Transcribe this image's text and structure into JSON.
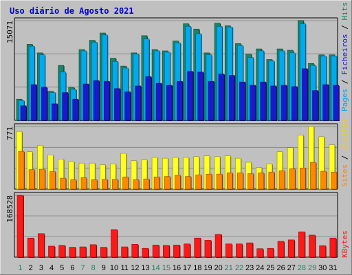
{
  "title": "Uso diário de Agosto 2021",
  "colors": {
    "background": "#c0c0c0",
    "title": "#0000cc",
    "hits": "#1b8466",
    "files": "#00aaee",
    "pages": "#1a1acc",
    "visits": "#ffff20",
    "sites": "#ff8800",
    "kbytes": "#ff1818",
    "weekend": "#1b8466",
    "weekday": "#000000",
    "separator": "#000000",
    "grid": "#808080"
  },
  "chart_data": [
    {
      "type": "bar",
      "name": "hits-files-pages",
      "ymax_label": "15071",
      "ylim": [
        0,
        15071
      ],
      "categories": [
        "1",
        "2",
        "3",
        "4",
        "5",
        "6",
        "7",
        "8",
        "9",
        "10",
        "11",
        "12",
        "13",
        "14",
        "15",
        "16",
        "17",
        "18",
        "19",
        "20",
        "21",
        "22",
        "23",
        "24",
        "25",
        "26",
        "27",
        "28",
        "29",
        "30",
        "31"
      ],
      "series": [
        {
          "name": "Hits",
          "values": [
            3200,
            11500,
            10200,
            4400,
            8300,
            5000,
            10700,
            12100,
            13200,
            9400,
            8200,
            10200,
            12800,
            10700,
            10500,
            12000,
            14600,
            13800,
            10200,
            14700,
            14300,
            11600,
            10000,
            10800,
            9200,
            10800,
            10600,
            15100,
            8600,
            9900,
            9900
          ]
        },
        {
          "name": "Ficheiros",
          "values": [
            3000,
            11200,
            9900,
            4200,
            7300,
            4700,
            10500,
            11800,
            12900,
            8900,
            7900,
            10000,
            12300,
            10500,
            10300,
            11700,
            14200,
            13100,
            9900,
            14200,
            14100,
            11300,
            9500,
            10500,
            9000,
            10500,
            10200,
            14600,
            8300,
            9700,
            9700
          ]
        },
        {
          "name": "Pages",
          "values": [
            2200,
            5400,
            5000,
            2500,
            4200,
            3200,
            5500,
            6000,
            5900,
            4800,
            4300,
            5200,
            6600,
            5600,
            5300,
            5900,
            7400,
            7300,
            5900,
            7000,
            6800,
            5800,
            5300,
            5800,
            5200,
            5300,
            5100,
            7800,
            4500,
            5400,
            5300
          ]
        }
      ]
    },
    {
      "type": "bar",
      "name": "visits-sites",
      "ymax_label": "771",
      "ylim": [
        0,
        771
      ],
      "categories": [
        "1",
        "2",
        "3",
        "4",
        "5",
        "6",
        "7",
        "8",
        "9",
        "10",
        "11",
        "12",
        "13",
        "14",
        "15",
        "16",
        "17",
        "18",
        "19",
        "20",
        "21",
        "22",
        "23",
        "24",
        "25",
        "26",
        "27",
        "28",
        "29",
        "30",
        "31"
      ],
      "series": [
        {
          "name": "Visitas",
          "values": [
            710,
            460,
            540,
            420,
            370,
            340,
            320,
            320,
            300,
            310,
            440,
            350,
            360,
            390,
            380,
            390,
            390,
            400,
            410,
            400,
            410,
            380,
            330,
            265,
            310,
            460,
            510,
            665,
            771,
            645,
            545
          ]
        },
        {
          "name": "Sites",
          "values": [
            465,
            240,
            245,
            215,
            135,
            115,
            140,
            115,
            120,
            120,
            150,
            115,
            125,
            150,
            155,
            170,
            155,
            175,
            185,
            185,
            200,
            200,
            190,
            200,
            210,
            225,
            250,
            260,
            330,
            220,
            210
          ]
        }
      ]
    },
    {
      "type": "bar",
      "name": "kbytes",
      "ymax_label": "168528",
      "ylim": [
        0,
        168528
      ],
      "categories": [
        "1",
        "2",
        "3",
        "4",
        "5",
        "6",
        "7",
        "8",
        "9",
        "10",
        "11",
        "12",
        "13",
        "14",
        "15",
        "16",
        "17",
        "18",
        "19",
        "20",
        "21",
        "22",
        "23",
        "24",
        "25",
        "26",
        "27",
        "28",
        "29",
        "30",
        "31"
      ],
      "series": [
        {
          "name": "KBytes",
          "values": [
            168528,
            52000,
            64000,
            30000,
            32000,
            27000,
            28000,
            34000,
            27000,
            75000,
            28000,
            35000,
            24000,
            33000,
            32000,
            33000,
            36000,
            52000,
            46000,
            62000,
            36000,
            36000,
            39000,
            23000,
            24000,
            43000,
            47000,
            69000,
            60000,
            31000,
            52000
          ]
        }
      ]
    }
  ],
  "x_labels": [
    "1",
    "2",
    "3",
    "4",
    "5",
    "6",
    "7",
    "8",
    "9",
    "10",
    "11",
    "12",
    "13",
    "14",
    "15",
    "16",
    "17",
    "18",
    "19",
    "20",
    "21",
    "22",
    "23",
    "24",
    "25",
    "26",
    "27",
    "28",
    "29",
    "30",
    "31"
  ],
  "weekend_days": [
    1,
    7,
    8,
    14,
    15,
    21,
    22,
    28,
    29
  ],
  "side_legends": [
    {
      "parts": [
        {
          "text": "Pages",
          "color": "#00aaee"
        },
        {
          "text": " / ",
          "color": "#000000"
        },
        {
          "text": "Ficheiros",
          "color": "#1a1acc"
        },
        {
          "text": " / ",
          "color": "#000000"
        },
        {
          "text": "Hits",
          "color": "#1b8466"
        }
      ]
    },
    {
      "parts": [
        {
          "text": "Sites",
          "color": "#ff8800"
        },
        {
          "text": " / ",
          "color": "#000000"
        },
        {
          "text": "Visitas",
          "color": "#ffcc00"
        }
      ]
    },
    {
      "parts": [
        {
          "text": "KBytes",
          "color": "#ff1818"
        }
      ]
    }
  ]
}
